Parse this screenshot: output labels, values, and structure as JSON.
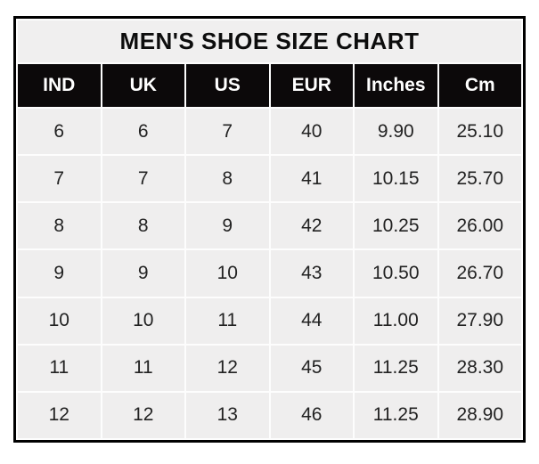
{
  "table": {
    "title": "MEN'S SHOE SIZE CHART",
    "columns": [
      "IND",
      "UK",
      "US",
      "EUR",
      "Inches",
      "Cm"
    ],
    "rows": [
      [
        "6",
        "6",
        "7",
        "40",
        "9.90",
        "25.10"
      ],
      [
        "7",
        "7",
        "8",
        "41",
        "10.15",
        "25.70"
      ],
      [
        "8",
        "8",
        "9",
        "42",
        "10.25",
        "26.00"
      ],
      [
        "9",
        "9",
        "10",
        "43",
        "10.50",
        "26.70"
      ],
      [
        "10",
        "10",
        "11",
        "44",
        "11.00",
        "27.90"
      ],
      [
        "11",
        "11",
        "12",
        "45",
        "11.25",
        "28.30"
      ],
      [
        "12",
        "12",
        "13",
        "46",
        "11.25",
        "28.90"
      ]
    ],
    "colors": {
      "outer_border": "#000000",
      "header_bg": "#0c090a",
      "header_text": "#ffffff",
      "title_bg": "#f0efef",
      "cell_bg": "#efeeee",
      "cell_text": "#222222",
      "gutter": "#fdfdfd",
      "page_bg": "#ffffff"
    }
  }
}
